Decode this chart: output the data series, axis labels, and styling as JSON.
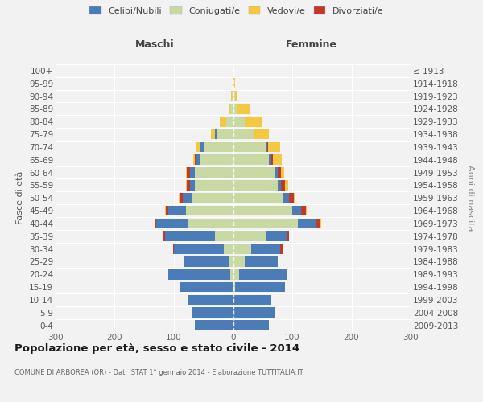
{
  "age_groups": [
    "0-4",
    "5-9",
    "10-14",
    "15-19",
    "20-24",
    "25-29",
    "30-34",
    "35-39",
    "40-44",
    "45-49",
    "50-54",
    "55-59",
    "60-64",
    "65-69",
    "70-74",
    "75-79",
    "80-84",
    "85-89",
    "90-94",
    "95-99",
    "100+"
  ],
  "birth_years": [
    "2009-2013",
    "2004-2008",
    "1999-2003",
    "1994-1998",
    "1989-1993",
    "1984-1988",
    "1979-1983",
    "1974-1978",
    "1969-1973",
    "1964-1968",
    "1959-1963",
    "1954-1958",
    "1949-1953",
    "1944-1948",
    "1939-1943",
    "1934-1938",
    "1929-1933",
    "1924-1928",
    "1919-1923",
    "1914-1918",
    "≤ 1913"
  ],
  "males": {
    "celibi": [
      65,
      70,
      75,
      90,
      105,
      75,
      85,
      85,
      55,
      30,
      15,
      8,
      8,
      7,
      5,
      2,
      0,
      0,
      0,
      0,
      0
    ],
    "coniugati": [
      0,
      0,
      0,
      0,
      5,
      8,
      15,
      30,
      75,
      80,
      70,
      65,
      65,
      55,
      50,
      28,
      12,
      5,
      2,
      1,
      0
    ],
    "vedovi": [
      0,
      0,
      0,
      0,
      0,
      0,
      0,
      0,
      0,
      1,
      1,
      1,
      2,
      3,
      5,
      8,
      10,
      3,
      1,
      0,
      0
    ],
    "divorziati": [
      0,
      0,
      0,
      0,
      0,
      1,
      1,
      3,
      3,
      4,
      6,
      5,
      5,
      3,
      2,
      0,
      0,
      0,
      0,
      0,
      0
    ]
  },
  "females": {
    "nubili": [
      60,
      70,
      65,
      85,
      80,
      55,
      50,
      35,
      30,
      15,
      10,
      6,
      6,
      5,
      3,
      0,
      0,
      0,
      0,
      0,
      0
    ],
    "coniugate": [
      0,
      0,
      0,
      3,
      10,
      20,
      30,
      55,
      110,
      100,
      85,
      75,
      70,
      60,
      55,
      35,
      20,
      8,
      3,
      1,
      0
    ],
    "vedove": [
      0,
      0,
      0,
      0,
      0,
      0,
      0,
      0,
      1,
      2,
      3,
      5,
      5,
      15,
      20,
      25,
      30,
      20,
      5,
      2,
      0
    ],
    "divorziate": [
      0,
      0,
      0,
      0,
      0,
      1,
      3,
      4,
      8,
      8,
      8,
      7,
      5,
      2,
      1,
      0,
      0,
      0,
      0,
      0,
      0
    ]
  },
  "colors": {
    "celibi": "#4C7CB8",
    "coniugati": "#C8D9A4",
    "vedovi": "#F5C842",
    "divorziati": "#C0392B"
  },
  "xlim": [
    -300,
    300
  ],
  "xticks": [
    -300,
    -200,
    -100,
    0,
    100,
    200,
    300
  ],
  "xticklabels": [
    "300",
    "200",
    "100",
    "0",
    "100",
    "200",
    "300"
  ],
  "title": "Popolazione per età, sesso e stato civile - 2014",
  "subtitle": "COMUNE DI ARBOREA (OR) - Dati ISTAT 1° gennaio 2014 - Elaborazione TUTTITALIA.IT",
  "ylabel_left": "Fasce di età",
  "ylabel_right": "Anni di nascita",
  "legend_labels": [
    "Celibi/Nubili",
    "Coniugati/e",
    "Vedovi/e",
    "Divorziati/e"
  ],
  "maschi_label": "Maschi",
  "femmine_label": "Femmine",
  "bg_color": "#f2f2f2"
}
